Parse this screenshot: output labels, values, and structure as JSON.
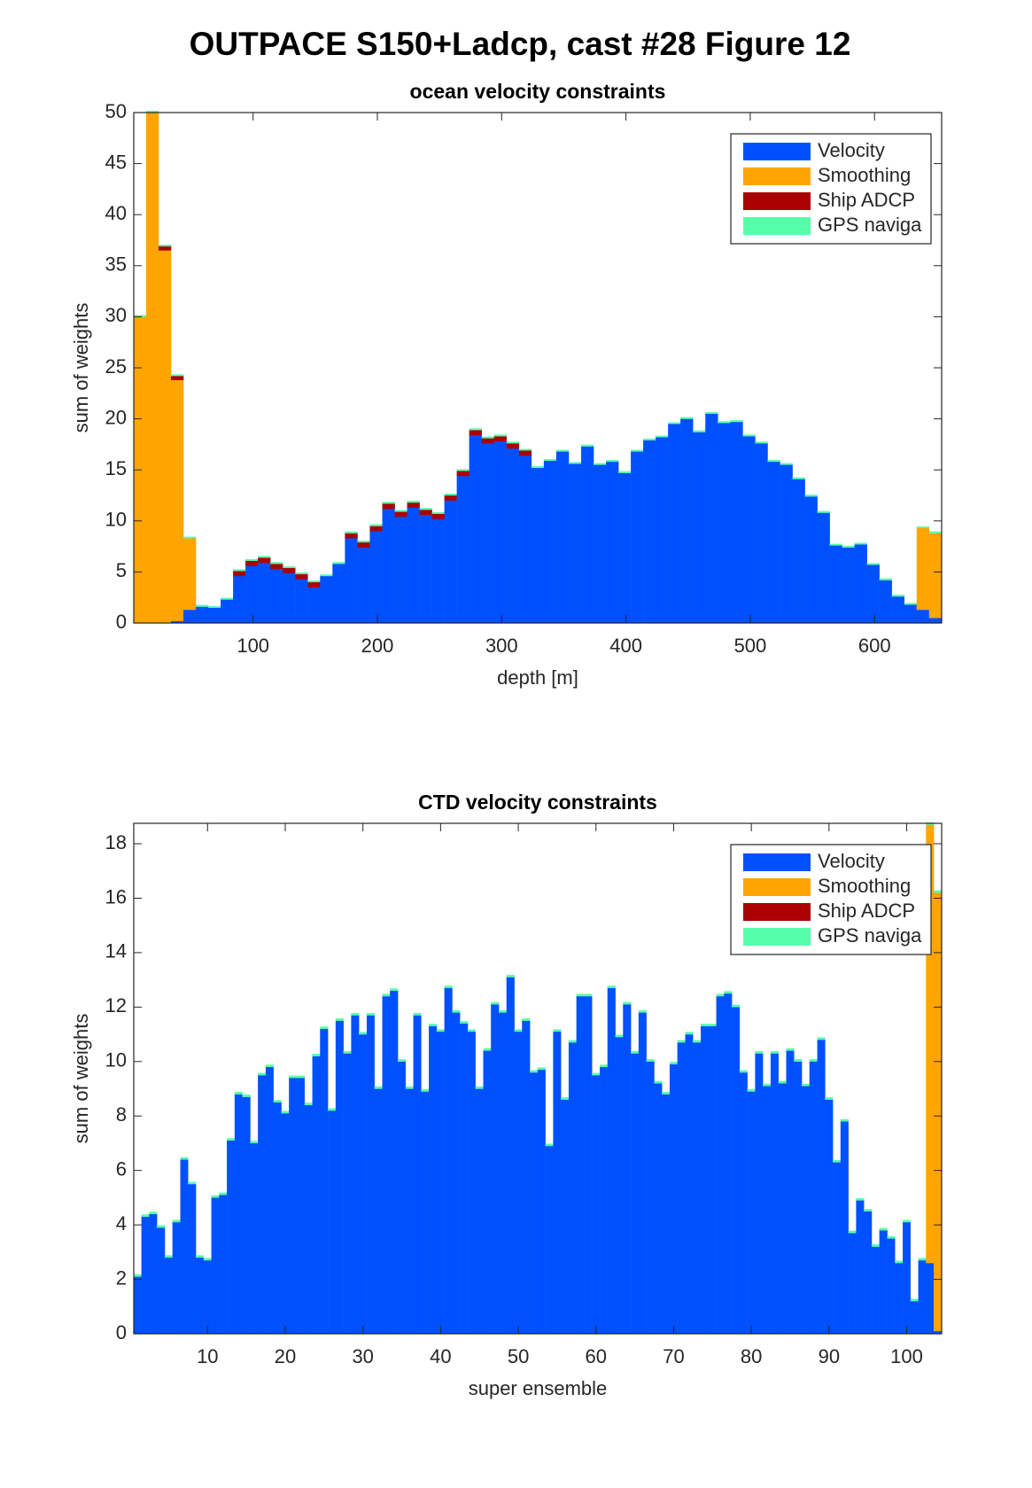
{
  "title": "OUTPACE S150+Ladcp, cast #28  Figure 12",
  "chart_data": [
    {
      "type": "bar",
      "stacked": true,
      "title": "ocean velocity constraints",
      "xlabel": "depth [m]",
      "ylabel": "sum of weights",
      "legend": "northeast",
      "x": [
        9,
        19,
        29,
        39,
        49,
        59,
        69,
        79,
        89,
        99,
        109,
        119,
        129,
        139,
        149,
        159,
        169,
        179,
        189,
        199,
        209,
        219,
        229,
        239,
        249,
        259,
        269,
        279,
        289,
        299,
        309,
        319,
        329,
        339,
        349,
        359,
        369,
        379,
        389,
        399,
        409,
        419,
        429,
        439,
        449,
        459,
        469,
        479,
        489,
        499,
        509,
        519,
        529,
        539,
        549,
        559,
        569,
        579,
        589,
        599,
        609,
        619,
        629,
        639,
        649
      ],
      "series": [
        {
          "name": "Velocity",
          "color": "#0050ff",
          "values": [
            0,
            0,
            0,
            0.2,
            1.3,
            1.6,
            1.5,
            2.3,
            4.6,
            5.6,
            5.9,
            5.3,
            4.9,
            4.3,
            3.5,
            4.6,
            5.8,
            8.3,
            7.4,
            9.0,
            11.2,
            10.4,
            11.3,
            10.6,
            10.2,
            12.0,
            14.4,
            18.4,
            17.6,
            17.8,
            17.1,
            16.4,
            15.2,
            15.9,
            16.8,
            15.6,
            17.3,
            15.5,
            15.8,
            14.7,
            16.8,
            17.9,
            18.2,
            19.5,
            20.0,
            18.7,
            20.5,
            19.6,
            19.7,
            18.3,
            17.6,
            15.8,
            15.5,
            14.1,
            12.4,
            10.8,
            7.6,
            7.4,
            7.7,
            5.7,
            4.2,
            2.6,
            1.8,
            1.3,
            0.5
          ]
        },
        {
          "name": "Smoothing",
          "color": "#ffa500",
          "values": [
            30,
            50,
            36.5,
            23.6,
            7.0,
            0,
            0,
            0,
            0,
            0,
            0,
            0,
            0,
            0,
            0,
            0,
            0,
            0,
            0,
            0,
            0,
            0,
            0,
            0,
            0,
            0,
            0,
            0,
            0,
            0,
            0,
            0,
            0,
            0,
            0,
            0,
            0,
            0,
            0,
            0,
            0,
            0,
            0,
            0,
            0,
            0,
            0,
            0,
            0,
            0,
            0,
            0,
            0,
            0,
            0,
            0,
            0,
            0,
            0,
            0,
            0,
            0,
            0,
            8.0,
            8.3
          ]
        },
        {
          "name": "Ship ADCP",
          "color": "#aa0000",
          "values": [
            0,
            0,
            0.4,
            0.4,
            0,
            0,
            0,
            0,
            0.5,
            0.5,
            0.5,
            0.5,
            0.5,
            0.5,
            0.5,
            0,
            0,
            0.5,
            0.5,
            0.5,
            0.5,
            0.5,
            0.5,
            0.5,
            0.5,
            0.5,
            0.5,
            0.5,
            0.5,
            0.5,
            0.5,
            0.5,
            0,
            0,
            0,
            0,
            0,
            0,
            0,
            0,
            0,
            0,
            0,
            0,
            0,
            0,
            0,
            0,
            0,
            0,
            0,
            0,
            0,
            0,
            0,
            0,
            0,
            0,
            0,
            0,
            0,
            0,
            0,
            0,
            0
          ]
        },
        {
          "name": "GPS naviga",
          "color": "#55ffaa",
          "values": [
            0.15,
            0.15,
            0.15,
            0.15,
            0.15,
            0.15,
            0.15,
            0.15,
            0.15,
            0.15,
            0.15,
            0.15,
            0.15,
            0.15,
            0.15,
            0.15,
            0.15,
            0.15,
            0.15,
            0.15,
            0.15,
            0.15,
            0.15,
            0.15,
            0.15,
            0.15,
            0.15,
            0.15,
            0.15,
            0.15,
            0.15,
            0.15,
            0.15,
            0.15,
            0.15,
            0.15,
            0.15,
            0.15,
            0.15,
            0.15,
            0.15,
            0.15,
            0.15,
            0.15,
            0.15,
            0.15,
            0.15,
            0.15,
            0.15,
            0.15,
            0.15,
            0.15,
            0.15,
            0.15,
            0.15,
            0.15,
            0.15,
            0.15,
            0.15,
            0.15,
            0.15,
            0.15,
            0.15,
            0.15,
            0.15
          ]
        }
      ],
      "xlim": [
        4,
        654
      ],
      "ylim": [
        0,
        50
      ],
      "xticks": [
        100,
        200,
        300,
        400,
        500,
        600
      ],
      "yticks": [
        0,
        5,
        10,
        15,
        20,
        25,
        30,
        35,
        40,
        45,
        50
      ]
    },
    {
      "type": "bar",
      "stacked": true,
      "title": "CTD velocity constraints",
      "xlabel": "super ensemble",
      "ylabel": "sum of weights",
      "legend": "northeast",
      "x": [
        1,
        2,
        3,
        4,
        5,
        6,
        7,
        8,
        9,
        10,
        11,
        12,
        13,
        14,
        15,
        16,
        17,
        18,
        19,
        20,
        21,
        22,
        23,
        24,
        25,
        26,
        27,
        28,
        29,
        30,
        31,
        32,
        33,
        34,
        35,
        36,
        37,
        38,
        39,
        40,
        41,
        42,
        43,
        44,
        45,
        46,
        47,
        48,
        49,
        50,
        51,
        52,
        53,
        54,
        55,
        56,
        57,
        58,
        59,
        60,
        61,
        62,
        63,
        64,
        65,
        66,
        67,
        68,
        69,
        70,
        71,
        72,
        73,
        74,
        75,
        76,
        77,
        78,
        79,
        80,
        81,
        82,
        83,
        84,
        85,
        86,
        87,
        88,
        89,
        90,
        91,
        92,
        93,
        94,
        95,
        96,
        97,
        98,
        99,
        100,
        101,
        102,
        103,
        104
      ],
      "series": [
        {
          "name": "Velocity",
          "color": "#0050ff",
          "values": [
            2.1,
            4.3,
            4.4,
            3.9,
            2.8,
            4.1,
            6.4,
            5.5,
            2.8,
            2.7,
            5.0,
            5.1,
            7.1,
            8.8,
            8.7,
            7.0,
            9.5,
            9.8,
            8.5,
            8.1,
            9.4,
            9.4,
            8.4,
            10.2,
            11.2,
            8.2,
            11.5,
            10.3,
            11.7,
            11.0,
            11.7,
            9.0,
            12.4,
            12.6,
            10.0,
            9.0,
            11.7,
            8.9,
            11.3,
            11.1,
            12.7,
            11.8,
            11.4,
            11.1,
            9.0,
            10.4,
            12.1,
            11.8,
            13.1,
            11.1,
            11.5,
            9.6,
            9.7,
            6.9,
            11.1,
            8.6,
            10.7,
            12.4,
            12.4,
            9.5,
            9.8,
            12.7,
            10.9,
            12.1,
            10.3,
            11.8,
            10.0,
            9.2,
            8.8,
            9.9,
            10.7,
            11.0,
            10.7,
            11.3,
            11.3,
            12.4,
            12.5,
            12.0,
            9.6,
            8.9,
            10.3,
            9.1,
            10.3,
            9.2,
            10.4,
            10.0,
            9.1,
            10.0,
            10.8,
            8.6,
            6.3,
            7.8,
            3.7,
            4.9,
            4.5,
            3.2,
            3.8,
            3.5,
            2.6,
            4.1,
            1.2,
            2.7,
            2.6,
            0.1
          ]
        },
        {
          "name": "Smoothing",
          "color": "#ffa500",
          "values": [
            0,
            0,
            0,
            0,
            0,
            0,
            0,
            0,
            0,
            0,
            0,
            0,
            0,
            0,
            0,
            0,
            0,
            0,
            0,
            0,
            0,
            0,
            0,
            0,
            0,
            0,
            0,
            0,
            0,
            0,
            0,
            0,
            0,
            0,
            0,
            0,
            0,
            0,
            0,
            0,
            0,
            0,
            0,
            0,
            0,
            0,
            0,
            0,
            0,
            0,
            0,
            0,
            0,
            0,
            0,
            0,
            0,
            0,
            0,
            0,
            0,
            0,
            0,
            0,
            0,
            0,
            0,
            0,
            0,
            0,
            0,
            0,
            0,
            0,
            0,
            0,
            0,
            0,
            0,
            0,
            0,
            0,
            0,
            0,
            0,
            0,
            0,
            0,
            0,
            0,
            0,
            0,
            0,
            0,
            0,
            0,
            0,
            0,
            0,
            0,
            0,
            0,
            16.1,
            16.1
          ]
        },
        {
          "name": "Ship ADCP",
          "color": "#aa0000",
          "values": [
            0,
            0,
            0,
            0,
            0,
            0,
            0,
            0,
            0,
            0,
            0,
            0,
            0,
            0,
            0,
            0,
            0,
            0,
            0,
            0,
            0,
            0,
            0,
            0,
            0,
            0,
            0,
            0,
            0,
            0,
            0,
            0,
            0,
            0,
            0,
            0,
            0,
            0,
            0,
            0,
            0,
            0,
            0,
            0,
            0,
            0,
            0,
            0,
            0,
            0,
            0,
            0,
            0,
            0,
            0,
            0,
            0,
            0,
            0,
            0,
            0,
            0,
            0,
            0,
            0,
            0,
            0,
            0,
            0,
            0,
            0,
            0,
            0,
            0,
            0,
            0,
            0,
            0,
            0,
            0,
            0,
            0,
            0,
            0,
            0,
            0,
            0,
            0,
            0,
            0,
            0,
            0,
            0,
            0,
            0,
            0,
            0,
            0,
            0,
            0,
            0,
            0,
            0,
            0
          ]
        },
        {
          "name": "GPS naviga",
          "color": "#55ffaa",
          "values": [
            0.08,
            0.08,
            0.08,
            0.08,
            0.08,
            0.08,
            0.08,
            0.08,
            0.08,
            0.08,
            0.08,
            0.08,
            0.08,
            0.08,
            0.08,
            0.08,
            0.08,
            0.08,
            0.08,
            0.08,
            0.08,
            0.08,
            0.08,
            0.08,
            0.08,
            0.08,
            0.08,
            0.08,
            0.08,
            0.08,
            0.08,
            0.08,
            0.08,
            0.08,
            0.08,
            0.08,
            0.08,
            0.08,
            0.08,
            0.08,
            0.08,
            0.08,
            0.08,
            0.08,
            0.08,
            0.08,
            0.08,
            0.08,
            0.08,
            0.08,
            0.08,
            0.08,
            0.08,
            0.08,
            0.08,
            0.08,
            0.08,
            0.08,
            0.08,
            0.08,
            0.08,
            0.08,
            0.08,
            0.08,
            0.08,
            0.08,
            0.08,
            0.08,
            0.08,
            0.08,
            0.08,
            0.08,
            0.08,
            0.08,
            0.08,
            0.08,
            0.08,
            0.08,
            0.08,
            0.08,
            0.08,
            0.08,
            0.08,
            0.08,
            0.08,
            0.08,
            0.08,
            0.08,
            0.08,
            0.08,
            0.08,
            0.08,
            0.08,
            0.08,
            0.08,
            0.08,
            0.08,
            0.08,
            0.08,
            0.08,
            0.08,
            0.08,
            0.08,
            0.08
          ]
        }
      ],
      "xlim": [
        0.5,
        104.5
      ],
      "ylim": [
        0,
        18.75
      ],
      "xticks": [
        10,
        20,
        30,
        40,
        50,
        60,
        70,
        80,
        90,
        100
      ],
      "yticks": [
        0,
        2,
        4,
        6,
        8,
        10,
        12,
        14,
        16,
        18
      ]
    }
  ]
}
